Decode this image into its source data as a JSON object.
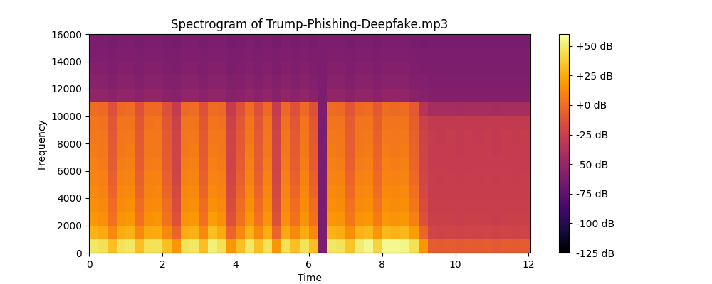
{
  "chart_data": {
    "type": "heatmap",
    "title": "Spectrogram of Trump-Phishing-Deepfake.mp3",
    "x_label": "Time",
    "y_label": "Frequency",
    "xlim": [
      0,
      12.05
    ],
    "xticks": [
      0,
      2,
      4,
      6,
      8,
      10,
      12
    ],
    "ylim": [
      0,
      16000
    ],
    "yticks": [
      0,
      2000,
      4000,
      6000,
      8000,
      10000,
      12000,
      14000,
      16000
    ],
    "x_edges": [
      0,
      0.25,
      0.5,
      0.75,
      1.0,
      1.25,
      1.5,
      1.75,
      2.0,
      2.25,
      2.5,
      2.75,
      3.0,
      3.25,
      3.5,
      3.75,
      4.0,
      4.25,
      4.5,
      4.75,
      5.0,
      5.25,
      5.5,
      5.75,
      6.0,
      6.25,
      6.5,
      6.75,
      7.0,
      7.25,
      7.5,
      7.75,
      8.0,
      8.25,
      8.5,
      8.75,
      9.0,
      9.25,
      9.5,
      9.75,
      10.0,
      10.25,
      10.5,
      10.75,
      11.0,
      11.25,
      11.5,
      11.75,
      12.0,
      12.05
    ],
    "y_edges": [
      0,
      1000,
      2000,
      3000,
      4000,
      5000,
      6000,
      7000,
      8000,
      9000,
      10000,
      11000,
      12000,
      13000,
      14000,
      15000,
      16000
    ],
    "cells": [
      [
        48,
        28,
        18,
        14,
        12,
        10,
        8,
        6,
        5,
        3,
        0,
        -52,
        -56,
        -58,
        -60,
        -62
      ],
      [
        45,
        25,
        15,
        12,
        10,
        8,
        6,
        5,
        4,
        2,
        -2,
        -52,
        -56,
        -58,
        -60,
        -62
      ],
      [
        32,
        12,
        2,
        0,
        -4,
        -6,
        -8,
        -9,
        -10,
        -11,
        -14,
        -55,
        -58,
        -60,
        -61,
        -63
      ],
      [
        46,
        26,
        16,
        13,
        11,
        9,
        7,
        5,
        4,
        3,
        -1,
        -52,
        -56,
        -58,
        -60,
        -62
      ],
      [
        48,
        28,
        18,
        14,
        12,
        10,
        8,
        6,
        5,
        3,
        0,
        -52,
        -56,
        -58,
        -60,
        -62
      ],
      [
        32,
        12,
        2,
        0,
        -4,
        -6,
        -8,
        -9,
        -10,
        -11,
        -14,
        -55,
        -58,
        -60,
        -61,
        -63
      ],
      [
        45,
        25,
        15,
        12,
        10,
        8,
        6,
        5,
        4,
        2,
        -2,
        -52,
        -56,
        -58,
        -60,
        -62
      ],
      [
        46,
        26,
        16,
        13,
        11,
        9,
        7,
        5,
        4,
        3,
        -1,
        -52,
        -56,
        -58,
        -60,
        -62
      ],
      [
        32,
        12,
        2,
        0,
        -4,
        -6,
        -8,
        -9,
        -10,
        -11,
        -14,
        -55,
        -58,
        -60,
        -61,
        -63
      ],
      [
        18,
        -4,
        -14,
        -17,
        -19,
        -21,
        -22,
        -22,
        -23,
        -24,
        -28,
        -57,
        -59,
        -61,
        -62,
        -64
      ],
      [
        46,
        26,
        16,
        13,
        11,
        9,
        7,
        5,
        4,
        3,
        -1,
        -52,
        -56,
        -58,
        -60,
        -62
      ],
      [
        48,
        28,
        18,
        14,
        12,
        10,
        8,
        6,
        5,
        3,
        0,
        -52,
        -56,
        -58,
        -60,
        -62
      ],
      [
        32,
        12,
        2,
        0,
        -4,
        -6,
        -8,
        -9,
        -10,
        -11,
        -14,
        -55,
        -58,
        -60,
        -61,
        -63
      ],
      [
        52,
        32,
        20,
        15,
        12,
        10,
        8,
        6,
        5,
        3,
        0,
        -52,
        -56,
        -58,
        -60,
        -62
      ],
      [
        45,
        25,
        15,
        12,
        10,
        8,
        6,
        5,
        4,
        2,
        -2,
        -52,
        -56,
        -58,
        -60,
        -62
      ],
      [
        18,
        -4,
        -14,
        -17,
        -19,
        -21,
        -22,
        -22,
        -23,
        -24,
        -28,
        -57,
        -59,
        -61,
        -62,
        -64
      ],
      [
        32,
        12,
        2,
        0,
        -4,
        -6,
        -8,
        -9,
        -10,
        -11,
        -14,
        -55,
        -58,
        -60,
        -61,
        -63
      ],
      [
        48,
        28,
        18,
        14,
        12,
        10,
        8,
        6,
        5,
        3,
        0,
        -52,
        -56,
        -58,
        -60,
        -62
      ],
      [
        32,
        12,
        2,
        0,
        -4,
        -6,
        -8,
        -9,
        -10,
        -11,
        -14,
        -55,
        -58,
        -60,
        -61,
        -63
      ],
      [
        46,
        26,
        16,
        13,
        11,
        9,
        7,
        5,
        4,
        3,
        -1,
        -52,
        -56,
        -58,
        -60,
        -62
      ],
      [
        18,
        -4,
        -14,
        -17,
        -19,
        -21,
        -22,
        -22,
        -23,
        -24,
        -28,
        -57,
        -59,
        -61,
        -62,
        -64
      ],
      [
        45,
        25,
        15,
        12,
        10,
        8,
        6,
        5,
        4,
        2,
        -2,
        -52,
        -56,
        -58,
        -60,
        -62
      ],
      [
        32,
        12,
        2,
        0,
        -4,
        -6,
        -8,
        -9,
        -10,
        -11,
        -14,
        -55,
        -58,
        -60,
        -61,
        -63
      ],
      [
        46,
        26,
        16,
        13,
        11,
        9,
        7,
        5,
        4,
        3,
        -1,
        -52,
        -56,
        -58,
        -60,
        -62
      ],
      [
        32,
        12,
        2,
        0,
        -4,
        -6,
        -8,
        -9,
        -10,
        -11,
        -14,
        -55,
        -58,
        -60,
        -61,
        -63
      ],
      [
        -60,
        -62,
        -62,
        -62,
        -62,
        -62,
        -62,
        -62,
        -62,
        -62,
        -62,
        -62,
        -62,
        -62,
        -62,
        -62
      ],
      [
        48,
        28,
        18,
        14,
        12,
        10,
        8,
        6,
        5,
        3,
        0,
        -52,
        -56,
        -58,
        -60,
        -62
      ],
      [
        46,
        26,
        16,
        13,
        11,
        9,
        7,
        5,
        4,
        3,
        -1,
        -52,
        -56,
        -58,
        -60,
        -62
      ],
      [
        34,
        14,
        4,
        2,
        -2,
        -4,
        -6,
        -7,
        -8,
        -9,
        -12,
        -55,
        -58,
        -60,
        -61,
        -63
      ],
      [
        50,
        28,
        16,
        13,
        11,
        9,
        7,
        5,
        4,
        3,
        -1,
        -52,
        -56,
        -58,
        -60,
        -62
      ],
      [
        55,
        30,
        18,
        14,
        12,
        10,
        8,
        6,
        5,
        3,
        0,
        -52,
        -56,
        -58,
        -60,
        -62
      ],
      [
        40,
        18,
        6,
        3,
        0,
        -2,
        -4,
        -5,
        -6,
        -7,
        -10,
        -55,
        -58,
        -60,
        -61,
        -63
      ],
      [
        55,
        30,
        18,
        14,
        12,
        10,
        8,
        6,
        5,
        3,
        0,
        -52,
        -56,
        -58,
        -60,
        -62
      ],
      [
        55,
        28,
        16,
        13,
        11,
        9,
        7,
        5,
        4,
        3,
        -1,
        -52,
        -56,
        -58,
        -60,
        -62
      ],
      [
        54,
        30,
        18,
        14,
        12,
        10,
        8,
        6,
        5,
        3,
        0,
        -52,
        -56,
        -58,
        -60,
        -62
      ],
      [
        45,
        20,
        8,
        4,
        1,
        -2,
        -4,
        -5,
        -6,
        -7,
        -10,
        -55,
        -58,
        -60,
        -61,
        -63
      ],
      [
        18,
        -4,
        -14,
        -17,
        -19,
        -21,
        -22,
        -22,
        -23,
        -24,
        -34,
        -57,
        -59,
        -61,
        -62,
        -64
      ],
      [
        -8,
        -22,
        -25,
        -26,
        -27,
        -27,
        -28,
        -28,
        -28,
        -29,
        -42,
        -58,
        -60,
        -61,
        -62,
        -63
      ],
      [
        -9,
        -23,
        -25,
        -26,
        -27,
        -28,
        -28,
        -28,
        -29,
        -29,
        -42,
        -58,
        -60,
        -61,
        -62,
        -63
      ],
      [
        -8,
        -22,
        -25,
        -26,
        -27,
        -27,
        -28,
        -28,
        -28,
        -29,
        -42,
        -58,
        -60,
        -61,
        -62,
        -63
      ],
      [
        -10,
        -23,
        -26,
        -26,
        -27,
        -28,
        -28,
        -29,
        -29,
        -29,
        -43,
        -58,
        -60,
        -61,
        -62,
        -63
      ],
      [
        -8,
        -22,
        -25,
        -26,
        -27,
        -27,
        -28,
        -28,
        -28,
        -29,
        -42,
        -58,
        -60,
        -61,
        -62,
        -63
      ],
      [
        -9,
        -23,
        -25,
        -26,
        -27,
        -28,
        -28,
        -28,
        -29,
        -29,
        -42,
        -58,
        -60,
        -61,
        -62,
        -63
      ],
      [
        -8,
        -22,
        -25,
        -26,
        -27,
        -27,
        -28,
        -28,
        -28,
        -29,
        -42,
        -58,
        -60,
        -61,
        -62,
        -63
      ],
      [
        -10,
        -23,
        -26,
        -26,
        -27,
        -28,
        -28,
        -29,
        -29,
        -29,
        -43,
        -58,
        -60,
        -61,
        -62,
        -63
      ],
      [
        -8,
        -22,
        -25,
        -26,
        -27,
        -27,
        -28,
        -28,
        -28,
        -29,
        -42,
        -58,
        -60,
        -61,
        -62,
        -63
      ],
      [
        -9,
        -23,
        -25,
        -26,
        -27,
        -28,
        -28,
        -28,
        -29,
        -29,
        -42,
        -58,
        -60,
        -61,
        -62,
        -63
      ],
      [
        -8,
        -22,
        -25,
        -26,
        -27,
        -27,
        -28,
        -28,
        -28,
        -29,
        -42,
        -58,
        -60,
        -61,
        -62,
        -63
      ],
      [
        -9,
        -22,
        -25,
        -26,
        -27,
        -27,
        -28,
        -28,
        -28,
        -29,
        -42,
        -58,
        -60,
        -61,
        -62,
        -63
      ]
    ],
    "colorbar_range": [
      -125,
      60
    ],
    "colorbar_ticks": [
      {
        "value": -125,
        "label": "-125 dB"
      },
      {
        "value": -100,
        "label": "-100 dB"
      },
      {
        "value": -75,
        "label": "-75 dB"
      },
      {
        "value": -50,
        "label": "-50 dB"
      },
      {
        "value": -25,
        "label": "-25 dB"
      },
      {
        "value": 0,
        "label": "+0 dB"
      },
      {
        "value": 25,
        "label": "+25 dB"
      },
      {
        "value": 50,
        "label": "+50 dB"
      }
    ]
  }
}
